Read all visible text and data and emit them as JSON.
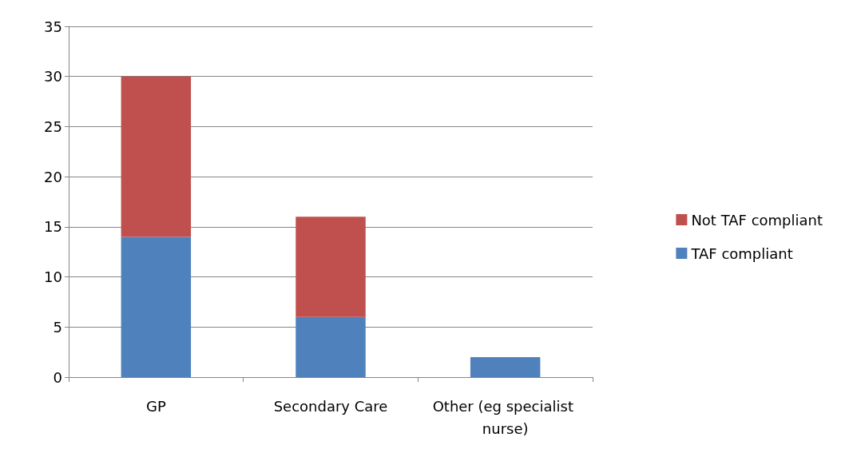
{
  "chart_data": {
    "type": "bar",
    "stacked": true,
    "categories": [
      "GP",
      "Secondary Care",
      "Other (eg specialist nurse)"
    ],
    "series": [
      {
        "name": "TAF compliant",
        "color": "#4f81bd",
        "values": [
          14,
          6,
          2
        ]
      },
      {
        "name": "Not TAF compliant",
        "color": "#c0504d",
        "values": [
          16,
          10,
          0
        ]
      }
    ],
    "ylim": [
      0,
      35
    ],
    "yticks": [
      0,
      5,
      10,
      15,
      20,
      25,
      30,
      35
    ],
    "grid": "y",
    "legend": "right"
  }
}
